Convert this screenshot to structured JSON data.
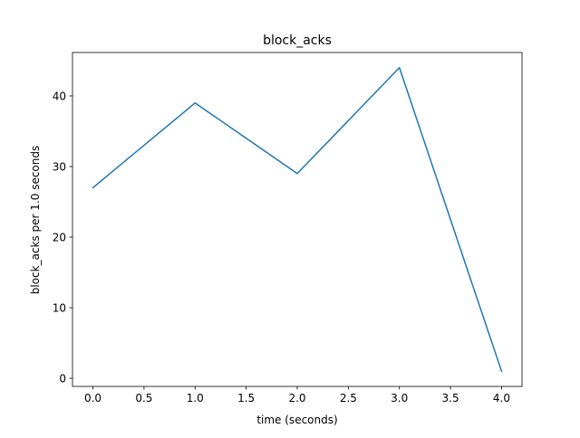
{
  "chart_data": {
    "type": "line",
    "title": "block_acks",
    "xlabel": "time (seconds)",
    "ylabel": "block_acks per 1.0 seconds",
    "xlim": [
      -0.2,
      4.2
    ],
    "ylim": [
      -1.15,
      46.15
    ],
    "x_ticks": [
      0.0,
      0.5,
      1.0,
      1.5,
      2.0,
      2.5,
      3.0,
      3.5,
      4.0
    ],
    "x_tick_labels": [
      "0.0",
      "0.5",
      "1.0",
      "1.5",
      "2.0",
      "2.5",
      "3.0",
      "3.5",
      "4.0"
    ],
    "y_ticks": [
      0,
      10,
      20,
      30,
      40
    ],
    "y_tick_labels": [
      "0",
      "10",
      "20",
      "30",
      "40"
    ],
    "grid": false,
    "series": [
      {
        "x": [
          0,
          1,
          2,
          3,
          4
        ],
        "values": [
          27,
          39,
          29,
          44,
          1
        ],
        "color": "#1f77b4"
      }
    ]
  }
}
